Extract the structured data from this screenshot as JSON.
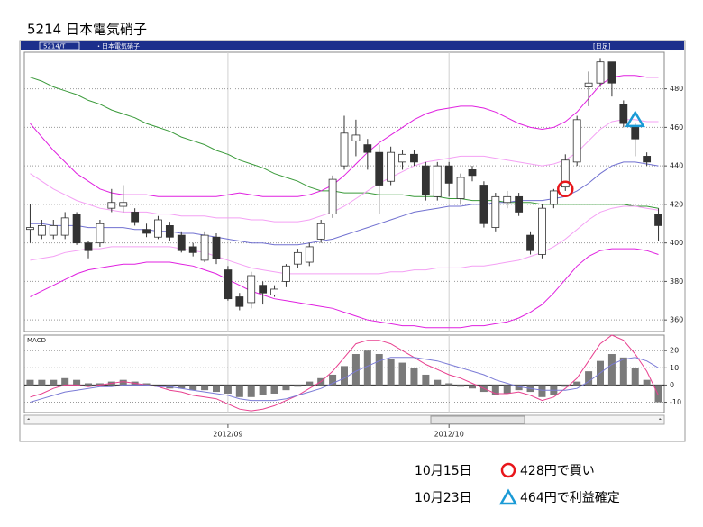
{
  "title": "5214  日本電気硝子",
  "header": {
    "code": "5214/T",
    "name": "・日本電気硝子",
    "period": "[日足]"
  },
  "chart_data": [
    {
      "type": "candlestick",
      "categories": [
        null,
        null,
        null,
        null,
        null,
        null,
        null,
        null,
        null,
        null,
        null,
        null,
        null,
        null,
        null,
        null,
        null,
        "2012/09",
        null,
        null,
        null,
        null,
        null,
        null,
        null,
        null,
        null,
        null,
        null,
        null,
        null,
        null,
        null,
        null,
        null,
        null,
        "2012/10",
        null,
        null,
        null,
        null,
        null,
        null,
        null,
        null,
        null,
        null,
        null,
        null,
        null,
        null,
        null,
        null,
        null,
        null
      ],
      "open": [
        407,
        404,
        404,
        404,
        415,
        400,
        400,
        418,
        419,
        416,
        407,
        403,
        409,
        404,
        398,
        391,
        403,
        386,
        372,
        369,
        378,
        373,
        380,
        389,
        390,
        402,
        415,
        440,
        453,
        451,
        447,
        432,
        442,
        446,
        440,
        424,
        440,
        423,
        438,
        430,
        408,
        421,
        424,
        404,
        394,
        420,
        429,
        442,
        481,
        483,
        494,
        472,
        460,
        445,
        415
      ],
      "high": [
        420,
        412,
        412,
        416,
        416,
        401,
        412,
        428,
        430,
        418,
        410,
        414,
        411,
        406,
        400,
        406,
        405,
        388,
        374,
        385,
        380,
        378,
        389,
        397,
        400,
        412,
        435,
        466,
        464,
        454,
        451,
        450,
        448,
        448,
        442,
        442,
        442,
        436,
        440,
        432,
        426,
        427,
        426,
        406,
        420,
        428,
        446,
        466,
        489,
        496,
        494,
        474,
        462,
        447,
        418
      ],
      "low": [
        400,
        402,
        402,
        402,
        399,
        392,
        398,
        416,
        416,
        409,
        403,
        402,
        401,
        395,
        393,
        390,
        389,
        370,
        365,
        366,
        368,
        372,
        377,
        387,
        388,
        400,
        413,
        438,
        445,
        438,
        415,
        430,
        438,
        440,
        422,
        422,
        424,
        420,
        432,
        408,
        406,
        418,
        414,
        394,
        392,
        418,
        427,
        440,
        471,
        481,
        476,
        460,
        445,
        440,
        401
      ],
      "close": [
        408,
        409,
        409,
        413,
        400,
        396,
        410,
        421,
        421,
        411,
        405,
        412,
        403,
        396,
        395,
        404,
        392,
        371,
        367,
        383,
        374,
        376,
        388,
        395,
        398,
        410,
        433,
        457,
        456,
        447,
        430,
        447,
        446,
        442,
        425,
        440,
        431,
        434,
        435,
        410,
        424,
        424,
        416,
        396,
        418,
        427,
        443,
        464,
        483,
        494,
        483,
        462,
        454,
        442,
        409
      ],
      "up_color": "#ffffff",
      "down_color": "#333333",
      "series": [
        {
          "color": "#3a9a3a",
          "values": [
            486,
            484,
            481,
            479,
            477,
            474,
            472,
            469,
            467,
            465,
            462,
            460,
            458,
            455,
            453,
            451,
            448,
            446,
            443,
            441,
            439,
            436,
            434,
            432,
            429,
            427,
            427,
            426,
            426,
            426,
            425,
            425,
            425,
            424,
            424,
            424,
            423,
            423,
            422,
            422,
            422,
            421,
            421,
            421,
            420,
            420,
            420,
            420,
            420,
            420,
            420,
            420,
            419,
            419,
            418
          ]
        },
        {
          "color": "#7070d0",
          "values": [
            410,
            410,
            409,
            409,
            409,
            408,
            408,
            408,
            408,
            407,
            407,
            406,
            406,
            405,
            405,
            404,
            403,
            402,
            401,
            400,
            400,
            399,
            399,
            399,
            400,
            401,
            402,
            404,
            406,
            408,
            410,
            412,
            414,
            416,
            417,
            418,
            419,
            419,
            420,
            420,
            421,
            421,
            422,
            422,
            422,
            423,
            424,
            427,
            431,
            436,
            440,
            442,
            442,
            441,
            440
          ]
        },
        {
          "color": "#e020e0",
          "values": [
            462,
            455,
            448,
            442,
            436,
            432,
            428,
            426,
            425,
            425,
            425,
            424,
            424,
            424,
            424,
            424,
            424,
            425,
            426,
            425,
            424,
            424,
            424,
            424,
            425,
            427,
            430,
            435,
            441,
            447,
            452,
            456,
            460,
            464,
            467,
            469,
            470,
            471,
            471,
            470,
            468,
            465,
            462,
            460,
            459,
            460,
            463,
            468,
            475,
            482,
            486,
            487,
            487,
            486,
            486
          ]
        },
        {
          "color": "#f4a0f4",
          "values": [
            436,
            432,
            428,
            425,
            422,
            420,
            418,
            417,
            416,
            416,
            416,
            415,
            415,
            414,
            414,
            414,
            413,
            413,
            413,
            412,
            412,
            411,
            411,
            411,
            412,
            414,
            416,
            419,
            423,
            427,
            431,
            434,
            437,
            440,
            442,
            443,
            444,
            445,
            445,
            445,
            444,
            443,
            442,
            441,
            440,
            441,
            443,
            447,
            453,
            459,
            463,
            464,
            464,
            463,
            463
          ]
        },
        {
          "color": "#f4a0f4",
          "values": [
            391,
            392,
            393,
            395,
            396,
            397,
            397,
            398,
            398,
            398,
            398,
            398,
            398,
            397,
            396,
            395,
            393,
            391,
            389,
            387,
            386,
            385,
            384,
            384,
            384,
            384,
            384,
            384,
            384,
            384,
            384,
            385,
            385,
            386,
            386,
            387,
            387,
            387,
            388,
            388,
            389,
            390,
            391,
            393,
            395,
            398,
            402,
            407,
            412,
            416,
            418,
            419,
            419,
            418,
            417
          ]
        },
        {
          "color": "#e020e0",
          "values": [
            372,
            375,
            378,
            381,
            384,
            386,
            387,
            388,
            389,
            389,
            390,
            390,
            390,
            389,
            388,
            386,
            384,
            381,
            378,
            375,
            373,
            371,
            370,
            369,
            368,
            367,
            366,
            364,
            362,
            360,
            359,
            358,
            357,
            357,
            356,
            356,
            356,
            356,
            357,
            357,
            358,
            359,
            361,
            364,
            368,
            374,
            381,
            388,
            393,
            396,
            397,
            397,
            397,
            396,
            394
          ]
        }
      ],
      "signals": [
        {
          "at": 46,
          "value": 428,
          "shape": "circle",
          "color": "#e8161b"
        },
        {
          "at": 52,
          "value": 464,
          "shape": "triangle",
          "color": "#1a9ad6"
        }
      ],
      "ylim": [
        354,
        499
      ],
      "yticks": [
        360,
        380,
        400,
        420,
        440,
        460,
        480
      ],
      "grid": true
    },
    {
      "type": "bar",
      "label": "MACD",
      "values": [
        3,
        3,
        3,
        4,
        3,
        1,
        1,
        2,
        3,
        2,
        1,
        0,
        -2,
        -2,
        -3,
        -3,
        -4,
        -5,
        -7,
        -7,
        -6,
        -5,
        -3,
        -1,
        2,
        4,
        6,
        11,
        18,
        20,
        18,
        15,
        13,
        10,
        6,
        3,
        1,
        -1,
        -2,
        -4,
        -6,
        -5,
        -3,
        -4,
        -7,
        -6,
        -1,
        2,
        8,
        14,
        18,
        16,
        10,
        3,
        -10
      ],
      "color": "#7a7a7a",
      "series": [
        {
          "color": "#e8408f",
          "values": [
            -7,
            -5,
            -2,
            0,
            0,
            -1,
            0,
            1,
            2,
            1,
            0,
            -1,
            -3,
            -4,
            -6,
            -7,
            -8,
            -11,
            -14,
            -15,
            -14,
            -12,
            -9,
            -6,
            -2,
            2,
            8,
            16,
            24,
            26,
            26,
            24,
            20,
            16,
            12,
            9,
            6,
            4,
            1,
            -2,
            -5,
            -5,
            -4,
            -6,
            -9,
            -7,
            -2,
            4,
            14,
            24,
            29,
            26,
            18,
            8,
            -6
          ]
        },
        {
          "color": "#7b7bd6",
          "values": [
            -10,
            -8,
            -6,
            -4,
            -3,
            -2,
            -1,
            -1,
            0,
            0,
            0,
            -1,
            -1,
            -2,
            -3,
            -4,
            -5,
            -6,
            -8,
            -9,
            -9,
            -9,
            -8,
            -6,
            -4,
            -2,
            1,
            4,
            8,
            11,
            14,
            16,
            16,
            16,
            15,
            14,
            12,
            10,
            8,
            6,
            3,
            1,
            -1,
            -2,
            -3,
            -3,
            -3,
            -2,
            2,
            7,
            12,
            15,
            16,
            14,
            10
          ]
        }
      ],
      "ylim": [
        -16,
        29
      ],
      "yticks": [
        -10,
        0,
        10,
        20
      ],
      "grid": true
    }
  ],
  "notes": [
    {
      "date": "10月15日",
      "text": "428円で買い"
    },
    {
      "date": "10月23日",
      "text": "464円で利益確定"
    }
  ]
}
